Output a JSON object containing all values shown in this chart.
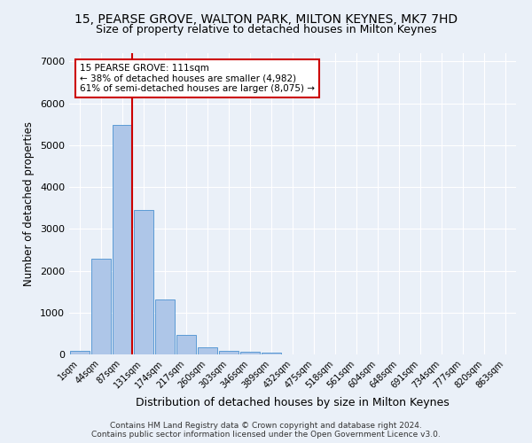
{
  "title_line1": "15, PEARSE GROVE, WALTON PARK, MILTON KEYNES, MK7 7HD",
  "title_line2": "Size of property relative to detached houses in Milton Keynes",
  "xlabel": "Distribution of detached houses by size in Milton Keynes",
  "ylabel": "Number of detached properties",
  "footnote": "Contains HM Land Registry data © Crown copyright and database right 2024.\nContains public sector information licensed under the Open Government Licence v3.0.",
  "bar_labels": [
    "1sqm",
    "44sqm",
    "87sqm",
    "131sqm",
    "174sqm",
    "217sqm",
    "260sqm",
    "303sqm",
    "346sqm",
    "389sqm",
    "432sqm",
    "475sqm",
    "518sqm",
    "561sqm",
    "604sqm",
    "648sqm",
    "691sqm",
    "734sqm",
    "777sqm",
    "820sqm",
    "863sqm"
  ],
  "bar_values": [
    80,
    2280,
    5480,
    3450,
    1320,
    470,
    160,
    90,
    55,
    35,
    0,
    0,
    0,
    0,
    0,
    0,
    0,
    0,
    0,
    0,
    0
  ],
  "bar_color": "#aec6e8",
  "bar_edge_color": "#5b9bd5",
  "vline_bar_index": 2,
  "vline_color": "#cc0000",
  "annotation_text": "15 PEARSE GROVE: 111sqm\n← 38% of detached houses are smaller (4,982)\n61% of semi-detached houses are larger (8,075) →",
  "annotation_box_color": "#ffffff",
  "annotation_box_edge": "#cc0000",
  "ylim": [
    0,
    7200
  ],
  "yticks": [
    0,
    1000,
    2000,
    3000,
    4000,
    5000,
    6000,
    7000
  ],
  "bg_color": "#eaf0f8",
  "grid_color": "#ffffff",
  "title_fontsize": 10,
  "subtitle_fontsize": 9,
  "footnote_fontsize": 6.5
}
